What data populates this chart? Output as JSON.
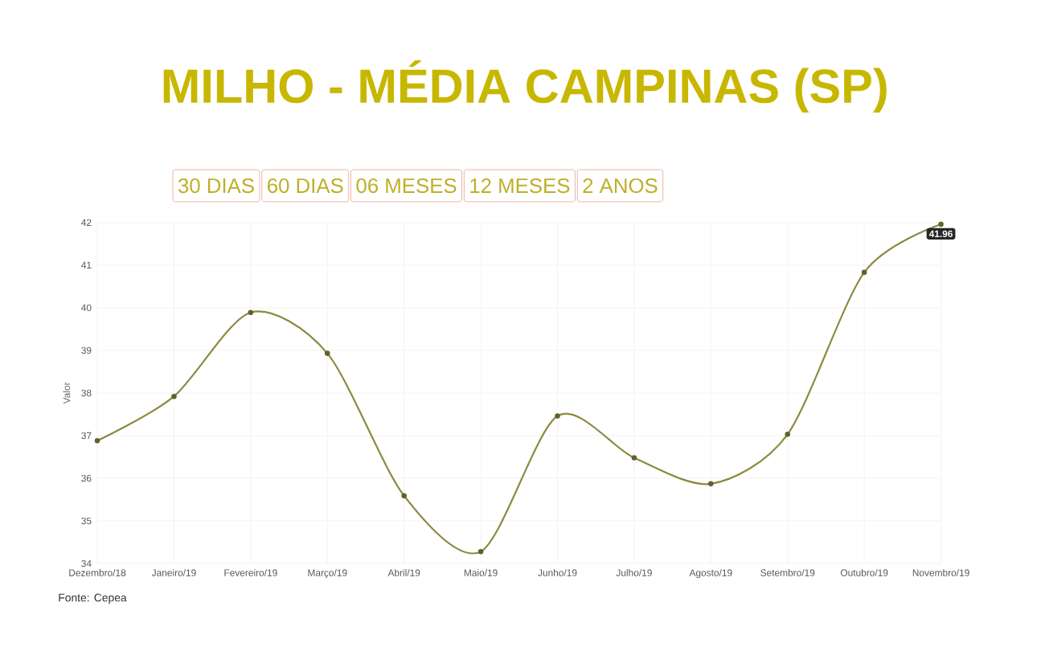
{
  "chart_data": {
    "type": "line",
    "title": "MILHO - MÉDIA CAMPINAS (SP)",
    "ylabel": "Valor",
    "categories": [
      "Dezembro/18",
      "Janeiro/19",
      "Fevereiro/19",
      "Março/19",
      "Abril/19",
      "Maio/19",
      "Junho/19",
      "Julho/19",
      "Agosto/19",
      "Setembro/19",
      "Outubro/19",
      "Novembro/19"
    ],
    "series": [
      {
        "color": "#8c8a3e",
        "values": [
          36.88,
          37.92,
          39.89,
          38.93,
          35.59,
          34.28,
          37.46,
          36.48,
          35.87,
          37.03,
          40.83,
          41.96
        ]
      }
    ],
    "ylim": [
      34,
      42
    ],
    "yticks": [
      34,
      35,
      36,
      37,
      38,
      39,
      40,
      41,
      42
    ],
    "grid": true,
    "marker": "circle",
    "annotations": [
      "30 DIAS",
      "60 DIAS",
      "06 MESES",
      "12 MESES",
      "2 ANOS",
      {
        "text": "41.96",
        "x": "Novembro/19",
        "y": 41.96
      },
      "Fonte: Cepea"
    ]
  }
}
